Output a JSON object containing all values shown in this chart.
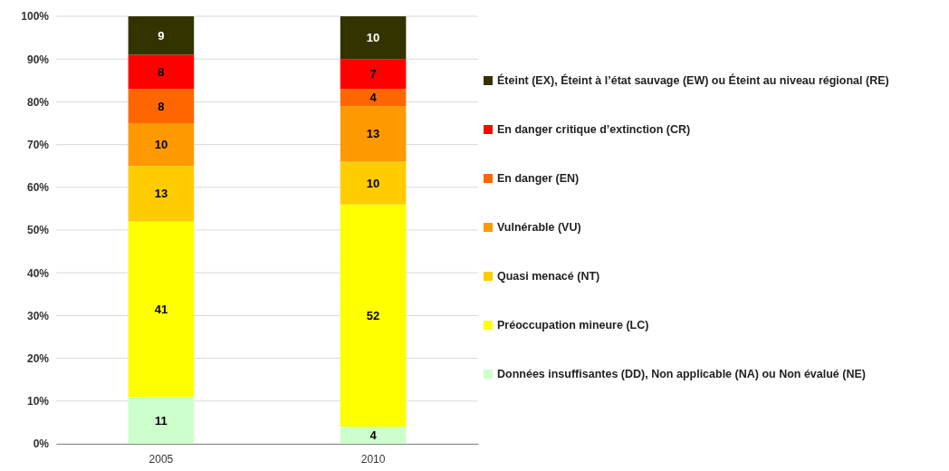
{
  "chart_data": {
    "type": "bar",
    "stacked": true,
    "categories": [
      "2005",
      "2010"
    ],
    "series": [
      {
        "name": "Données insuffisantes (DD), Non applicable (NA) ou Non évalué (NE)",
        "color": "#ccffcc",
        "values": [
          11,
          4
        ]
      },
      {
        "name": "Préoccupation mineure (LC)",
        "color": "#ffff00",
        "values": [
          41,
          52
        ]
      },
      {
        "name": "Quasi menacé (NT)",
        "color": "#ffcc00",
        "values": [
          13,
          10
        ]
      },
      {
        "name": "Vulnérable (VU)",
        "color": "#ff9900",
        "values": [
          10,
          13
        ]
      },
      {
        "name": "En danger (EN)",
        "color": "#ff6600",
        "values": [
          8,
          4
        ]
      },
      {
        "name": "En danger critique d’extinction (CR)",
        "color": "#ff0000",
        "values": [
          8,
          7
        ]
      },
      {
        "name": "Éteint (EX), Éteint à l’état sauvage (EW) ou Éteint au niveau régional (RE)",
        "color": "#333300",
        "values": [
          9,
          10
        ]
      }
    ],
    "ylim": [
      0,
      100
    ],
    "yticks": [
      {
        "value": 0,
        "label": "0%"
      },
      {
        "value": 10,
        "label": "10%"
      },
      {
        "value": 20,
        "label": "20%"
      },
      {
        "value": 30,
        "label": "30%"
      },
      {
        "value": 40,
        "label": "40%"
      },
      {
        "value": 50,
        "label": "50%"
      },
      {
        "value": 60,
        "label": "60%"
      },
      {
        "value": 70,
        "label": "70%"
      },
      {
        "value": 80,
        "label": "80%"
      },
      {
        "value": 90,
        "label": "90%"
      },
      {
        "value": 100,
        "label": "100%"
      }
    ],
    "grid": "y",
    "legend": "right",
    "data_labels": true
  }
}
